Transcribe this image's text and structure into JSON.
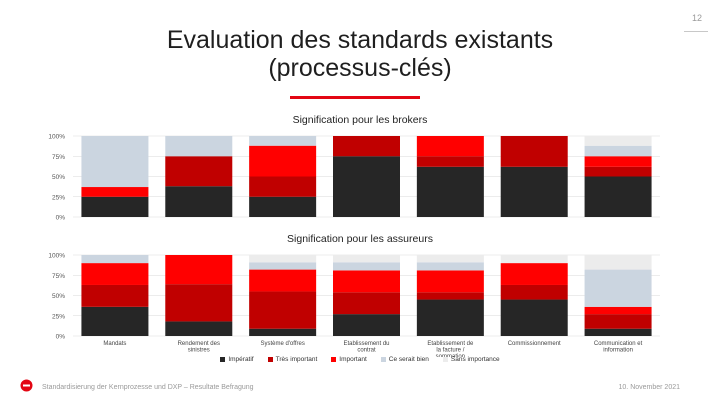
{
  "page": {
    "number": "12",
    "title_line1": "Evaluation des standards existants",
    "title_line2": "(processus-clés)",
    "footer_text": "Standardisierung der Kernprozesse und DXP – Resultate Befragung",
    "footer_date": "10. November 2021"
  },
  "colors": {
    "accent": "#e30613",
    "grid": "#d9d9d9"
  },
  "chart_data": [
    {
      "type": "bar",
      "stacked": true,
      "title": "Signification pour les brokers",
      "categories": [
        "Mandats",
        "Rendement des sinistres",
        "Système d'offres",
        "Etablissement du contrat",
        "Etablissement de la facture / sommation",
        "Commissionnement",
        "Communication et information"
      ],
      "yticks": [
        "0%",
        "25%",
        "50%",
        "75%",
        "100%"
      ],
      "ylim": [
        0,
        100
      ],
      "grid": true,
      "series": [
        {
          "name": "Impératif",
          "color": "#262626",
          "values": [
            25,
            38,
            25,
            75,
            62,
            62,
            50
          ]
        },
        {
          "name": "Très important",
          "color": "#c00000",
          "values": [
            0,
            37,
            25,
            25,
            13,
            38,
            12
          ]
        },
        {
          "name": "Important",
          "color": "#ff0000",
          "values": [
            12,
            0,
            38,
            0,
            25,
            0,
            13
          ]
        },
        {
          "name": "Ce serait bien",
          "color": "#cbd5e0",
          "values": [
            63,
            25,
            12,
            0,
            0,
            0,
            13
          ]
        },
        {
          "name": "Sans importance",
          "color": "#ececec",
          "values": [
            0,
            0,
            0,
            0,
            0,
            0,
            12
          ]
        }
      ]
    },
    {
      "type": "bar",
      "stacked": true,
      "title": "Signification pour les assureurs",
      "categories": [
        "Mandats",
        "Rendement des sinistres",
        "Système d'offres",
        "Etablissement du contrat",
        "Etablissement de la facture / sommation",
        "Commissionnement",
        "Communication et information"
      ],
      "yticks": [
        "0%",
        "25%",
        "50%",
        "75%",
        "100%"
      ],
      "ylim": [
        0,
        100
      ],
      "grid": true,
      "legend": "bottom",
      "series": [
        {
          "name": "Impératif",
          "color": "#262626",
          "values": [
            36,
            18,
            9,
            27,
            45,
            45,
            9
          ]
        },
        {
          "name": "Très important",
          "color": "#c00000",
          "values": [
            27,
            46,
            46,
            27,
            9,
            18,
            18
          ]
        },
        {
          "name": "Important",
          "color": "#ff0000",
          "values": [
            27,
            36,
            27,
            27,
            27,
            27,
            9
          ]
        },
        {
          "name": "Ce serait bien",
          "color": "#cbd5e0",
          "values": [
            10,
            0,
            9,
            10,
            10,
            0,
            46
          ]
        },
        {
          "name": "Sans importance",
          "color": "#ececec",
          "values": [
            0,
            0,
            9,
            9,
            9,
            10,
            18
          ]
        }
      ]
    }
  ]
}
